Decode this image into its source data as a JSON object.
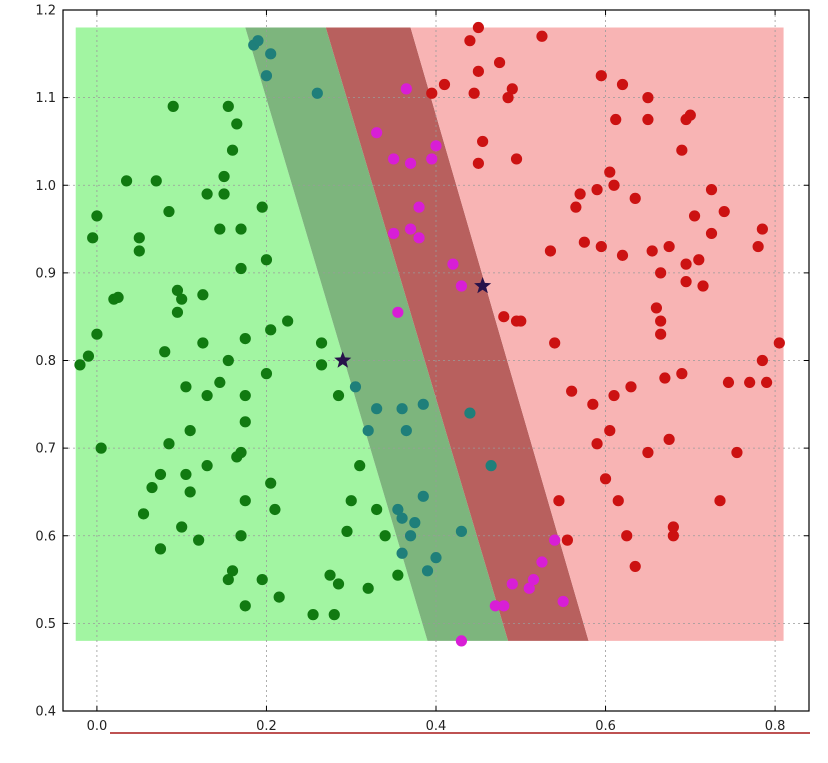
{
  "chart_data": {
    "type": "scatter",
    "title": "",
    "xlabel": "",
    "ylabel": "",
    "xlim": [
      -0.04,
      0.84
    ],
    "ylim": [
      0.4,
      1.2
    ],
    "grid": true,
    "xticks": [
      "0.0",
      "0.2",
      "0.4",
      "0.6",
      "0.8"
    ],
    "xtick_values": [
      0.0,
      0.2,
      0.4,
      0.6,
      0.8
    ],
    "yticks": [
      "0.4",
      "0.5",
      "0.6",
      "0.7",
      "0.8",
      "0.9",
      "1.0",
      "1.1",
      "1.2"
    ],
    "ytick_values": [
      0.4,
      0.5,
      0.6,
      0.7,
      0.8,
      0.9,
      1.0,
      1.1,
      1.2
    ],
    "colors": {
      "region_green": "#a2f5a2",
      "region_band_green": "#7db57d",
      "region_band_red": "#b8605e",
      "region_red": "#f8b4b4",
      "green_point": "#117a11",
      "teal_point": "#1f7f7a",
      "magenta_point": "#d81ed6",
      "red_point": "#cc1212",
      "star": "#28124a",
      "underline": "#a81818"
    },
    "regions": [
      {
        "name": "class-green",
        "polygon": [
          [
            -0.025,
            0.48
          ],
          [
            -0.025,
            1.18
          ],
          [
            0.175,
            1.18
          ],
          [
            0.39,
            0.48
          ]
        ]
      },
      {
        "name": "margin-green",
        "polygon": [
          [
            0.175,
            1.18
          ],
          [
            0.27,
            1.18
          ],
          [
            0.485,
            0.48
          ],
          [
            0.39,
            0.48
          ]
        ]
      },
      {
        "name": "margin-red",
        "polygon": [
          [
            0.27,
            1.18
          ],
          [
            0.37,
            1.18
          ],
          [
            0.58,
            0.48
          ],
          [
            0.485,
            0.48
          ]
        ]
      },
      {
        "name": "class-red",
        "polygon": [
          [
            0.37,
            1.18
          ],
          [
            0.81,
            1.18
          ],
          [
            0.81,
            0.48
          ],
          [
            0.58,
            0.48
          ]
        ]
      }
    ],
    "series": [
      {
        "name": "class-green",
        "color": "#117a11",
        "points": [
          [
            -0.02,
            0.795
          ],
          [
            -0.01,
            0.805
          ],
          [
            0.0,
            0.83
          ],
          [
            0.005,
            0.7
          ],
          [
            -0.005,
            0.94
          ],
          [
            0.0,
            0.965
          ],
          [
            0.02,
            0.87
          ],
          [
            0.025,
            0.872
          ],
          [
            0.035,
            1.005
          ],
          [
            0.05,
            0.94
          ],
          [
            0.05,
            0.925
          ],
          [
            0.055,
            0.625
          ],
          [
            0.065,
            0.655
          ],
          [
            0.07,
            1.005
          ],
          [
            0.075,
            0.585
          ],
          [
            0.075,
            0.67
          ],
          [
            0.08,
            0.81
          ],
          [
            0.085,
            0.705
          ],
          [
            0.085,
            0.97
          ],
          [
            0.09,
            1.09
          ],
          [
            0.095,
            0.88
          ],
          [
            0.095,
            0.855
          ],
          [
            0.1,
            0.87
          ],
          [
            0.1,
            0.61
          ],
          [
            0.105,
            0.77
          ],
          [
            0.105,
            0.67
          ],
          [
            0.11,
            0.65
          ],
          [
            0.11,
            0.72
          ],
          [
            0.12,
            0.595
          ],
          [
            0.125,
            0.875
          ],
          [
            0.125,
            0.82
          ],
          [
            0.13,
            0.68
          ],
          [
            0.13,
            0.76
          ],
          [
            0.13,
            0.99
          ],
          [
            0.145,
            0.95
          ],
          [
            0.145,
            0.775
          ],
          [
            0.15,
            0.99
          ],
          [
            0.15,
            1.01
          ],
          [
            0.155,
            0.8
          ],
          [
            0.155,
            1.09
          ],
          [
            0.155,
            0.55
          ],
          [
            0.16,
            0.56
          ],
          [
            0.16,
            1.04
          ],
          [
            0.165,
            1.07
          ],
          [
            0.165,
            0.69
          ],
          [
            0.17,
            0.695
          ],
          [
            0.17,
            0.95
          ],
          [
            0.17,
            0.905
          ],
          [
            0.175,
            0.52
          ],
          [
            0.175,
            0.76
          ],
          [
            0.175,
            0.825
          ],
          [
            0.175,
            0.73
          ],
          [
            0.17,
            0.6
          ],
          [
            0.175,
            0.64
          ],
          [
            0.195,
            0.975
          ],
          [
            0.195,
            0.55
          ],
          [
            0.2,
            0.785
          ],
          [
            0.2,
            0.915
          ],
          [
            0.205,
            0.835
          ],
          [
            0.205,
            0.66
          ],
          [
            0.21,
            0.63
          ],
          [
            0.215,
            0.53
          ],
          [
            0.225,
            0.845
          ],
          [
            0.255,
            0.51
          ],
          [
            0.265,
            0.795
          ],
          [
            0.265,
            0.82
          ],
          [
            0.275,
            0.555
          ],
          [
            0.28,
            0.51
          ],
          [
            0.285,
            0.545
          ],
          [
            0.285,
            0.76
          ],
          [
            0.295,
            0.605
          ],
          [
            0.3,
            0.64
          ],
          [
            0.31,
            0.68
          ],
          [
            0.32,
            0.54
          ],
          [
            0.33,
            0.63
          ],
          [
            0.34,
            0.6
          ],
          [
            0.355,
            0.555
          ]
        ]
      },
      {
        "name": "class-green-margin",
        "color": "#1f7f7a",
        "points": [
          [
            0.185,
            1.16
          ],
          [
            0.19,
            1.165
          ],
          [
            0.2,
            1.125
          ],
          [
            0.205,
            1.15
          ],
          [
            0.26,
            1.105
          ],
          [
            0.305,
            0.77
          ],
          [
            0.32,
            0.72
          ],
          [
            0.33,
            0.745
          ],
          [
            0.355,
            0.63
          ],
          [
            0.36,
            0.745
          ],
          [
            0.36,
            0.62
          ],
          [
            0.36,
            0.58
          ],
          [
            0.365,
            0.72
          ],
          [
            0.37,
            0.6
          ],
          [
            0.375,
            0.615
          ],
          [
            0.385,
            0.75
          ],
          [
            0.385,
            0.645
          ],
          [
            0.39,
            0.56
          ],
          [
            0.4,
            0.575
          ],
          [
            0.43,
            0.605
          ],
          [
            0.44,
            0.74
          ],
          [
            0.465,
            0.68
          ]
        ]
      },
      {
        "name": "class-red-margin",
        "color": "#d81ed6",
        "points": [
          [
            0.33,
            1.06
          ],
          [
            0.35,
            0.945
          ],
          [
            0.35,
            1.03
          ],
          [
            0.355,
            0.855
          ],
          [
            0.365,
            1.11
          ],
          [
            0.37,
            0.95
          ],
          [
            0.37,
            1.025
          ],
          [
            0.38,
            0.94
          ],
          [
            0.38,
            0.975
          ],
          [
            0.395,
            1.03
          ],
          [
            0.4,
            1.045
          ],
          [
            0.42,
            0.91
          ],
          [
            0.43,
            0.885
          ],
          [
            0.43,
            0.48
          ],
          [
            0.47,
            0.52
          ],
          [
            0.48,
            0.52
          ],
          [
            0.49,
            0.545
          ],
          [
            0.51,
            0.54
          ],
          [
            0.515,
            0.55
          ],
          [
            0.525,
            0.57
          ],
          [
            0.54,
            0.595
          ],
          [
            0.55,
            0.525
          ]
        ]
      },
      {
        "name": "class-red",
        "color": "#cc1212",
        "points": [
          [
            0.395,
            1.105
          ],
          [
            0.41,
            1.115
          ],
          [
            0.44,
            1.165
          ],
          [
            0.445,
            1.105
          ],
          [
            0.45,
            1.13
          ],
          [
            0.45,
            1.025
          ],
          [
            0.45,
            1.18
          ],
          [
            0.455,
            1.05
          ],
          [
            0.475,
            1.14
          ],
          [
            0.485,
            1.1
          ],
          [
            0.49,
            1.11
          ],
          [
            0.495,
            1.03
          ],
          [
            0.48,
            0.85
          ],
          [
            0.495,
            0.845
          ],
          [
            0.5,
            0.845
          ],
          [
            0.525,
            1.17
          ],
          [
            0.535,
            0.925
          ],
          [
            0.54,
            0.82
          ],
          [
            0.545,
            0.64
          ],
          [
            0.555,
            0.595
          ],
          [
            0.56,
            0.765
          ],
          [
            0.565,
            0.975
          ],
          [
            0.57,
            0.99
          ],
          [
            0.575,
            0.935
          ],
          [
            0.585,
            0.75
          ],
          [
            0.59,
            0.995
          ],
          [
            0.59,
            0.705
          ],
          [
            0.595,
            0.93
          ],
          [
            0.595,
            1.125
          ],
          [
            0.6,
            0.665
          ],
          [
            0.605,
            1.015
          ],
          [
            0.605,
            0.72
          ],
          [
            0.61,
            0.76
          ],
          [
            0.61,
            1.0
          ],
          [
            0.612,
            1.075
          ],
          [
            0.615,
            0.64
          ],
          [
            0.62,
            1.115
          ],
          [
            0.62,
            0.92
          ],
          [
            0.625,
            0.6
          ],
          [
            0.63,
            0.77
          ],
          [
            0.635,
            0.985
          ],
          [
            0.635,
            0.565
          ],
          [
            0.65,
            1.1
          ],
          [
            0.65,
            0.695
          ],
          [
            0.65,
            1.075
          ],
          [
            0.655,
            0.925
          ],
          [
            0.66,
            0.86
          ],
          [
            0.665,
            0.845
          ],
          [
            0.665,
            0.83
          ],
          [
            0.665,
            0.9
          ],
          [
            0.67,
            0.78
          ],
          [
            0.675,
            0.93
          ],
          [
            0.675,
            0.71
          ],
          [
            0.68,
            0.6
          ],
          [
            0.68,
            0.61
          ],
          [
            0.69,
            0.785
          ],
          [
            0.69,
            1.04
          ],
          [
            0.695,
            1.075
          ],
          [
            0.695,
            0.91
          ],
          [
            0.695,
            0.89
          ],
          [
            0.7,
            1.08
          ],
          [
            0.705,
            0.965
          ],
          [
            0.71,
            0.915
          ],
          [
            0.715,
            0.885
          ],
          [
            0.725,
            0.945
          ],
          [
            0.725,
            0.995
          ],
          [
            0.735,
            0.64
          ],
          [
            0.74,
            0.97
          ],
          [
            0.745,
            0.775
          ],
          [
            0.755,
            0.695
          ],
          [
            0.77,
            0.775
          ],
          [
            0.785,
            0.95
          ],
          [
            0.78,
            0.93
          ],
          [
            0.785,
            0.8
          ],
          [
            0.79,
            0.775
          ],
          [
            0.805,
            0.82
          ]
        ]
      },
      {
        "name": "support-vectors",
        "color": "#28124a",
        "marker": "star",
        "points": [
          [
            0.29,
            0.8
          ],
          [
            0.455,
            0.885
          ]
        ]
      }
    ]
  }
}
